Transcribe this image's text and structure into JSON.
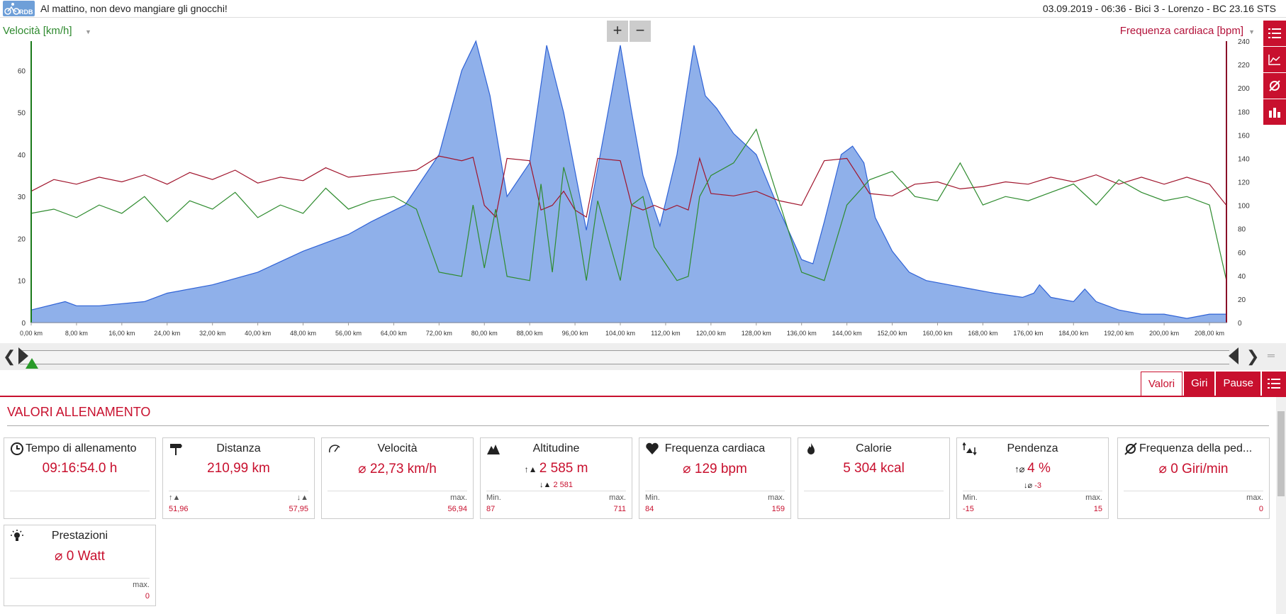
{
  "header": {
    "title": "Al mattino, non devo mangiare gli gnocchi!",
    "info": "03.09.2019  -  06:36  -  Bici 3  -  Lorenzo  -  BC 23.16 STS",
    "logo_text": "RDB"
  },
  "chart": {
    "left_axis_label": "Velocità [km/h]",
    "right_axis_label": "Frequenza cardiaca [bpm]",
    "zoom_in": "+",
    "zoom_out": "−"
  },
  "chart_data": {
    "type": "line",
    "x_unit": "km",
    "x_ticks": [
      "0,00 km",
      "8,00 km",
      "16,00 km",
      "24,00 km",
      "32,00 km",
      "40,00 km",
      "48,00 km",
      "56,00 km",
      "64,00 km",
      "72,00 km",
      "80,00 km",
      "88,00 km",
      "96,00 km",
      "104,00 km",
      "112,00 km",
      "120,00 km",
      "128,00 km",
      "136,00 km",
      "144,00 km",
      "152,00 km",
      "160,00 km",
      "168,00 km",
      "176,00 km",
      "184,00 km",
      "192,00 km",
      "200,00 km",
      "208,00 km"
    ],
    "xlim": [
      0,
      211
    ],
    "left_ticks": [
      "0",
      "10",
      "20",
      "30",
      "40",
      "50",
      "60"
    ],
    "ylim_left": [
      0,
      67
    ],
    "right_ticks": [
      "0",
      "20",
      "40",
      "60",
      "80",
      "100",
      "120",
      "140",
      "160",
      "180",
      "200",
      "220",
      "240"
    ],
    "ylim_right": [
      0,
      240
    ],
    "colors": {
      "speed": "#2e8b2e",
      "heart_rate": "#a0142c",
      "altitude_fill": "#8fb0ea",
      "altitude_line": "#2f62d6"
    },
    "series": [
      {
        "name": "Altitudine",
        "x": [
          0,
          6,
          8,
          12,
          20,
          24,
          32,
          40,
          48,
          56,
          60,
          66,
          72,
          76,
          78.5,
          81,
          84,
          88,
          91,
          94,
          98,
          101,
          104,
          106,
          108,
          111,
          114,
          117,
          119,
          121,
          124,
          128,
          132,
          136,
          138,
          140,
          143,
          145,
          147,
          149,
          152,
          155,
          158,
          162,
          166,
          170,
          175,
          177,
          178,
          180,
          184,
          186,
          188,
          192,
          196,
          200,
          204,
          208,
          211
        ],
        "values": [
          3,
          5,
          4,
          4,
          5,
          7,
          9,
          12,
          17,
          21,
          24,
          28,
          40,
          60,
          67,
          54,
          30,
          38,
          66,
          50,
          22,
          44,
          66,
          50,
          35,
          23,
          40,
          66,
          54,
          51,
          45,
          40,
          27,
          15,
          14,
          24,
          40,
          42,
          38,
          25,
          17,
          12,
          10,
          9,
          8,
          7,
          6,
          7,
          9,
          6,
          5,
          8,
          5,
          3,
          2,
          2,
          1,
          2,
          2
        ]
      },
      {
        "name": "Velocità",
        "x": [
          0,
          4,
          8,
          12,
          16,
          20,
          24,
          28,
          32,
          36,
          40,
          44,
          48,
          52,
          56,
          60,
          64,
          68,
          72,
          76,
          78,
          80,
          82,
          84,
          88,
          90,
          92,
          94,
          96,
          98,
          100,
          104,
          106,
          108,
          110,
          112,
          114,
          116,
          118,
          120,
          124,
          128,
          132,
          136,
          140,
          144,
          148,
          152,
          156,
          160,
          164,
          168,
          172,
          176,
          180,
          184,
          188,
          192,
          196,
          200,
          204,
          208,
          211
        ],
        "values": [
          26,
          27,
          25,
          28,
          26,
          30,
          24,
          29,
          27,
          31,
          25,
          28,
          26,
          32,
          27,
          29,
          30,
          27,
          12,
          11,
          28,
          13,
          27,
          11,
          10,
          33,
          12,
          37,
          27,
          10,
          29,
          10,
          28,
          30,
          18,
          14,
          10,
          11,
          30,
          35,
          38,
          46,
          29,
          12,
          10,
          28,
          34,
          36,
          30,
          29,
          38,
          28,
          30,
          29,
          31,
          33,
          28,
          34,
          31,
          29,
          30,
          28,
          10
        ]
      },
      {
        "name": "Frequenza cardiaca",
        "x": [
          0,
          4,
          8,
          12,
          16,
          20,
          24,
          28,
          32,
          36,
          40,
          44,
          48,
          52,
          56,
          60,
          64,
          68,
          72,
          76,
          78,
          80,
          82,
          84,
          88,
          90,
          92,
          94,
          96,
          98,
          100,
          104,
          106,
          108,
          110,
          112,
          114,
          116,
          118,
          120,
          124,
          128,
          132,
          136,
          140,
          144,
          148,
          152,
          156,
          160,
          164,
          168,
          172,
          176,
          180,
          184,
          188,
          192,
          196,
          200,
          204,
          208,
          211
        ],
        "values": [
          112,
          122,
          118,
          124,
          120,
          126,
          118,
          128,
          122,
          130,
          119,
          124,
          121,
          132,
          124,
          126,
          128,
          130,
          142,
          138,
          141,
          100,
          90,
          140,
          138,
          96,
          100,
          112,
          96,
          90,
          140,
          138,
          100,
          96,
          100,
          96,
          100,
          96,
          140,
          110,
          108,
          112,
          104,
          100,
          138,
          140,
          110,
          108,
          118,
          120,
          114,
          116,
          120,
          118,
          124,
          120,
          126,
          118,
          124,
          118,
          124,
          118,
          100
        ]
      }
    ]
  },
  "scrubber": {
    "left_arrow": "❮",
    "right_arrow": "❯",
    "menu": "═"
  },
  "tabs": [
    {
      "label": "Valori",
      "active": true
    },
    {
      "label": "Giri",
      "active": false
    },
    {
      "label": "Pause",
      "active": false
    }
  ],
  "section_title": "VALORI ALLENAMENTO",
  "cards": [
    {
      "icon": "clock-icon",
      "label": "Tempo di allenamento",
      "value": "09:16:54.0 h"
    },
    {
      "icon": "signpost-icon",
      "label": "Distanza",
      "value": "210,99 km",
      "bl_value": "51,96",
      "br_value": "57,95"
    },
    {
      "icon": "speedometer-icon",
      "label": "Velocità",
      "value": "⌀ 22,73 km/h",
      "br_label": "max.",
      "br_value": "56,94"
    },
    {
      "icon": "mountain-icon",
      "label": "Altitudine",
      "value": "2 585 m",
      "sub": "2 581",
      "bl_label": "Min.",
      "bl_value": "87",
      "br_label": "max.",
      "br_value": "711"
    },
    {
      "icon": "heart-icon",
      "label": "Frequenza cardiaca",
      "value": "⌀ 129 bpm",
      "bl_label": "Min.",
      "bl_value": "84",
      "br_label": "max.",
      "br_value": "159"
    },
    {
      "icon": "flame-icon",
      "label": "Calorie",
      "value": "5 304 kcal"
    },
    {
      "icon": "gradient-icon",
      "label": "Pendenza",
      "value": "4 %",
      "sub": "-3",
      "bl_label": "Min.",
      "bl_value": "-15",
      "br_label": "max.",
      "br_value": "15"
    },
    {
      "icon": "cadence-icon",
      "label": "Frequenza della ped...",
      "value": "⌀ 0 Giri/min",
      "br_label": "max.",
      "br_value": "0"
    },
    {
      "icon": "bulb-icon",
      "label": "Prestazioni",
      "value": "⌀ 0 Watt",
      "br_label": "max.",
      "br_value": "0"
    }
  ]
}
